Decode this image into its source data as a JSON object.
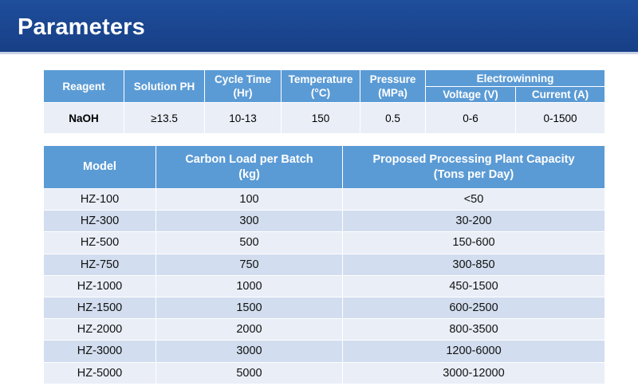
{
  "header": {
    "title": "Parameters"
  },
  "params_table": {
    "headers": {
      "reagent": "Reagent",
      "solution_ph": "Solution PH",
      "cycle_time_l1": "Cycle Time",
      "cycle_time_l2": "(Hr)",
      "temperature_l1": "Temperature",
      "temperature_l2": "(°C)",
      "pressure_l1": "Pressure",
      "pressure_l2": "(MPa)",
      "electrowinning": "Electrowinning",
      "voltage": "Voltage (V)",
      "current": "Current (A)"
    },
    "row": {
      "reagent": "NaOH",
      "solution_ph": "≥13.5",
      "cycle_time": "10-13",
      "temperature": "150",
      "pressure": "0.5",
      "voltage": "0-6",
      "current": "0-1500"
    }
  },
  "models_table": {
    "headers": {
      "model": "Model",
      "carbon_load_l1": "Carbon Load per Batch",
      "carbon_load_l2": "(kg)",
      "capacity_l1": "Proposed Processing Plant Capacity",
      "capacity_l2": "(Tons per Day)"
    },
    "rows": [
      {
        "model": "HZ-100",
        "load": "100",
        "capacity": "<50"
      },
      {
        "model": "HZ-300",
        "load": "300",
        "capacity": "30-200"
      },
      {
        "model": "HZ-500",
        "load": "500",
        "capacity": "150-600"
      },
      {
        "model": "HZ-750",
        "load": "750",
        "capacity": "300-850"
      },
      {
        "model": "HZ-1000",
        "load": "1000",
        "capacity": "450-1500"
      },
      {
        "model": "HZ-1500",
        "load": "1500",
        "capacity": "600-2500"
      },
      {
        "model": "HZ-2000",
        "load": "2000",
        "capacity": "800-3500"
      },
      {
        "model": "HZ-3000",
        "load": "3000",
        "capacity": "1200-6000"
      },
      {
        "model": "HZ-5000",
        "load": "5000",
        "capacity": "3000-12000"
      }
    ]
  }
}
